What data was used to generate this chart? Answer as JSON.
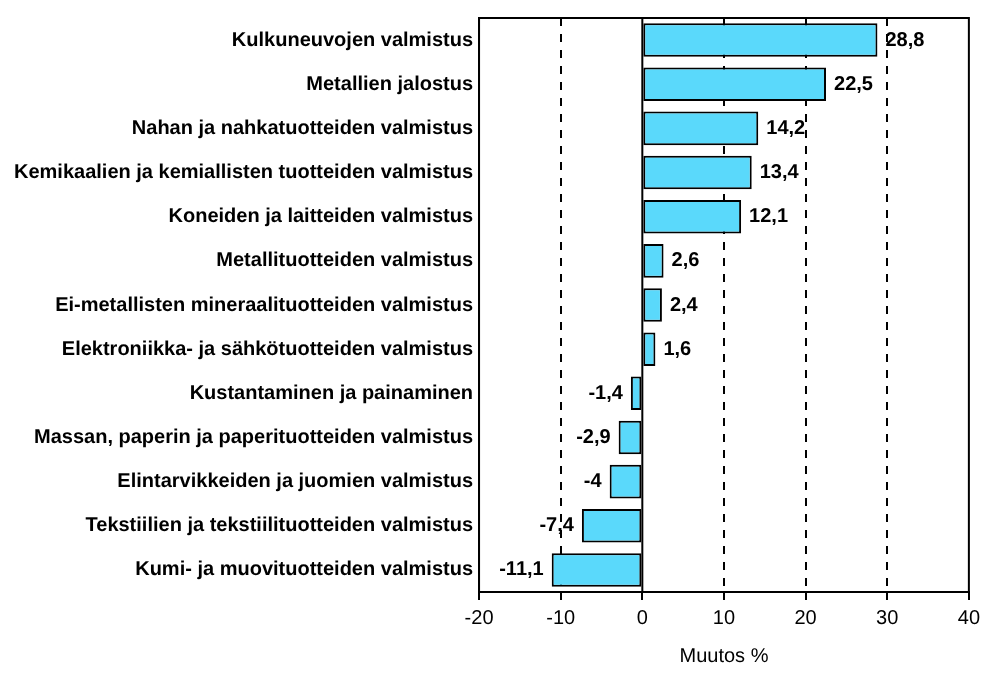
{
  "chart_data": {
    "type": "bar",
    "orientation": "horizontal",
    "xlabel": "Muutos %",
    "categories": [
      "Kulkuneuvojen valmistus",
      "Metallien jalostus",
      "Nahan ja nahkatuotteiden valmistus",
      "Kemikaalien ja kemiallisten tuotteiden valmistus",
      "Koneiden ja laitteiden valmistus",
      "Metallituotteiden valmistus",
      "Ei-metallisten mineraalituotteiden valmistus",
      "Elektroniikka- ja sähkötuotteiden valmistus",
      "Kustantaminen ja painaminen",
      "Massan, paperin ja paperituotteiden valmistus",
      "Elintarvikkeiden ja juomien valmistus",
      "Tekstiilien ja tekstiilituotteiden valmistus",
      "Kumi- ja muovituotteiden valmistus"
    ],
    "values": [
      28.8,
      22.5,
      14.2,
      13.4,
      12.1,
      2.6,
      2.4,
      1.6,
      -1.4,
      -2.9,
      -4,
      -7.4,
      -11.1
    ],
    "value_labels": [
      "28,8",
      "22,5",
      "14,2",
      "13,4",
      "12,1",
      "2,6",
      "2,4",
      "1,6",
      "-1,4",
      "-2,9",
      "-4",
      "-7,4",
      "-11,1"
    ],
    "color": "#5ad9fb",
    "xlim": [
      -20,
      40
    ],
    "xticks": [
      -20,
      -10,
      0,
      10,
      20,
      30,
      40
    ],
    "grid": "x",
    "line_style": "dashed",
    "legend": false
  }
}
